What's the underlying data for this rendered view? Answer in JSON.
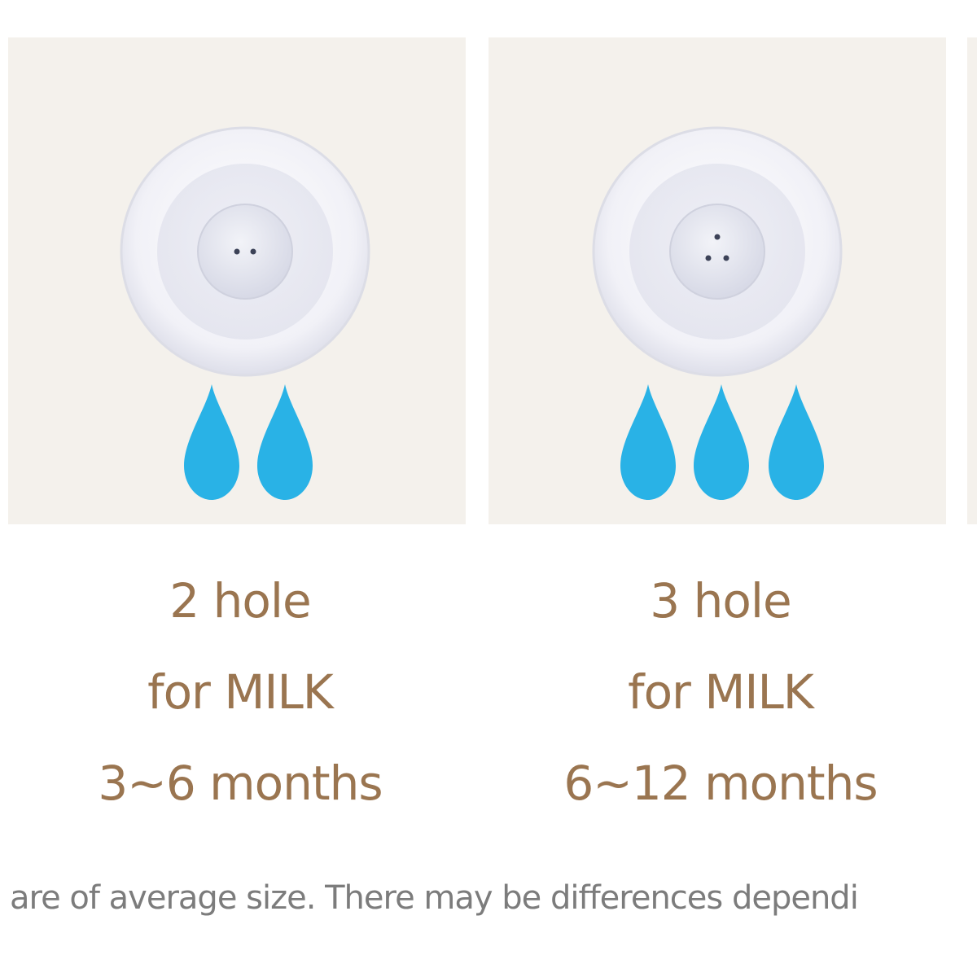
{
  "colors": {
    "card_background": "#f4f1ec",
    "drop": "#29b2e6",
    "caption_text": "#9a7550",
    "footnote_text": "#7c7c7c"
  },
  "cards": [
    {
      "holes": 2,
      "drops": 2,
      "line1": "2 hole",
      "line2": "for MILK",
      "line3": "3~6 months"
    },
    {
      "holes": 3,
      "drops": 3,
      "line1": "3 hole",
      "line2": "for MILK",
      "line3": "6~12 months"
    }
  ],
  "footnote": "are of average size. There may be differences dependi"
}
